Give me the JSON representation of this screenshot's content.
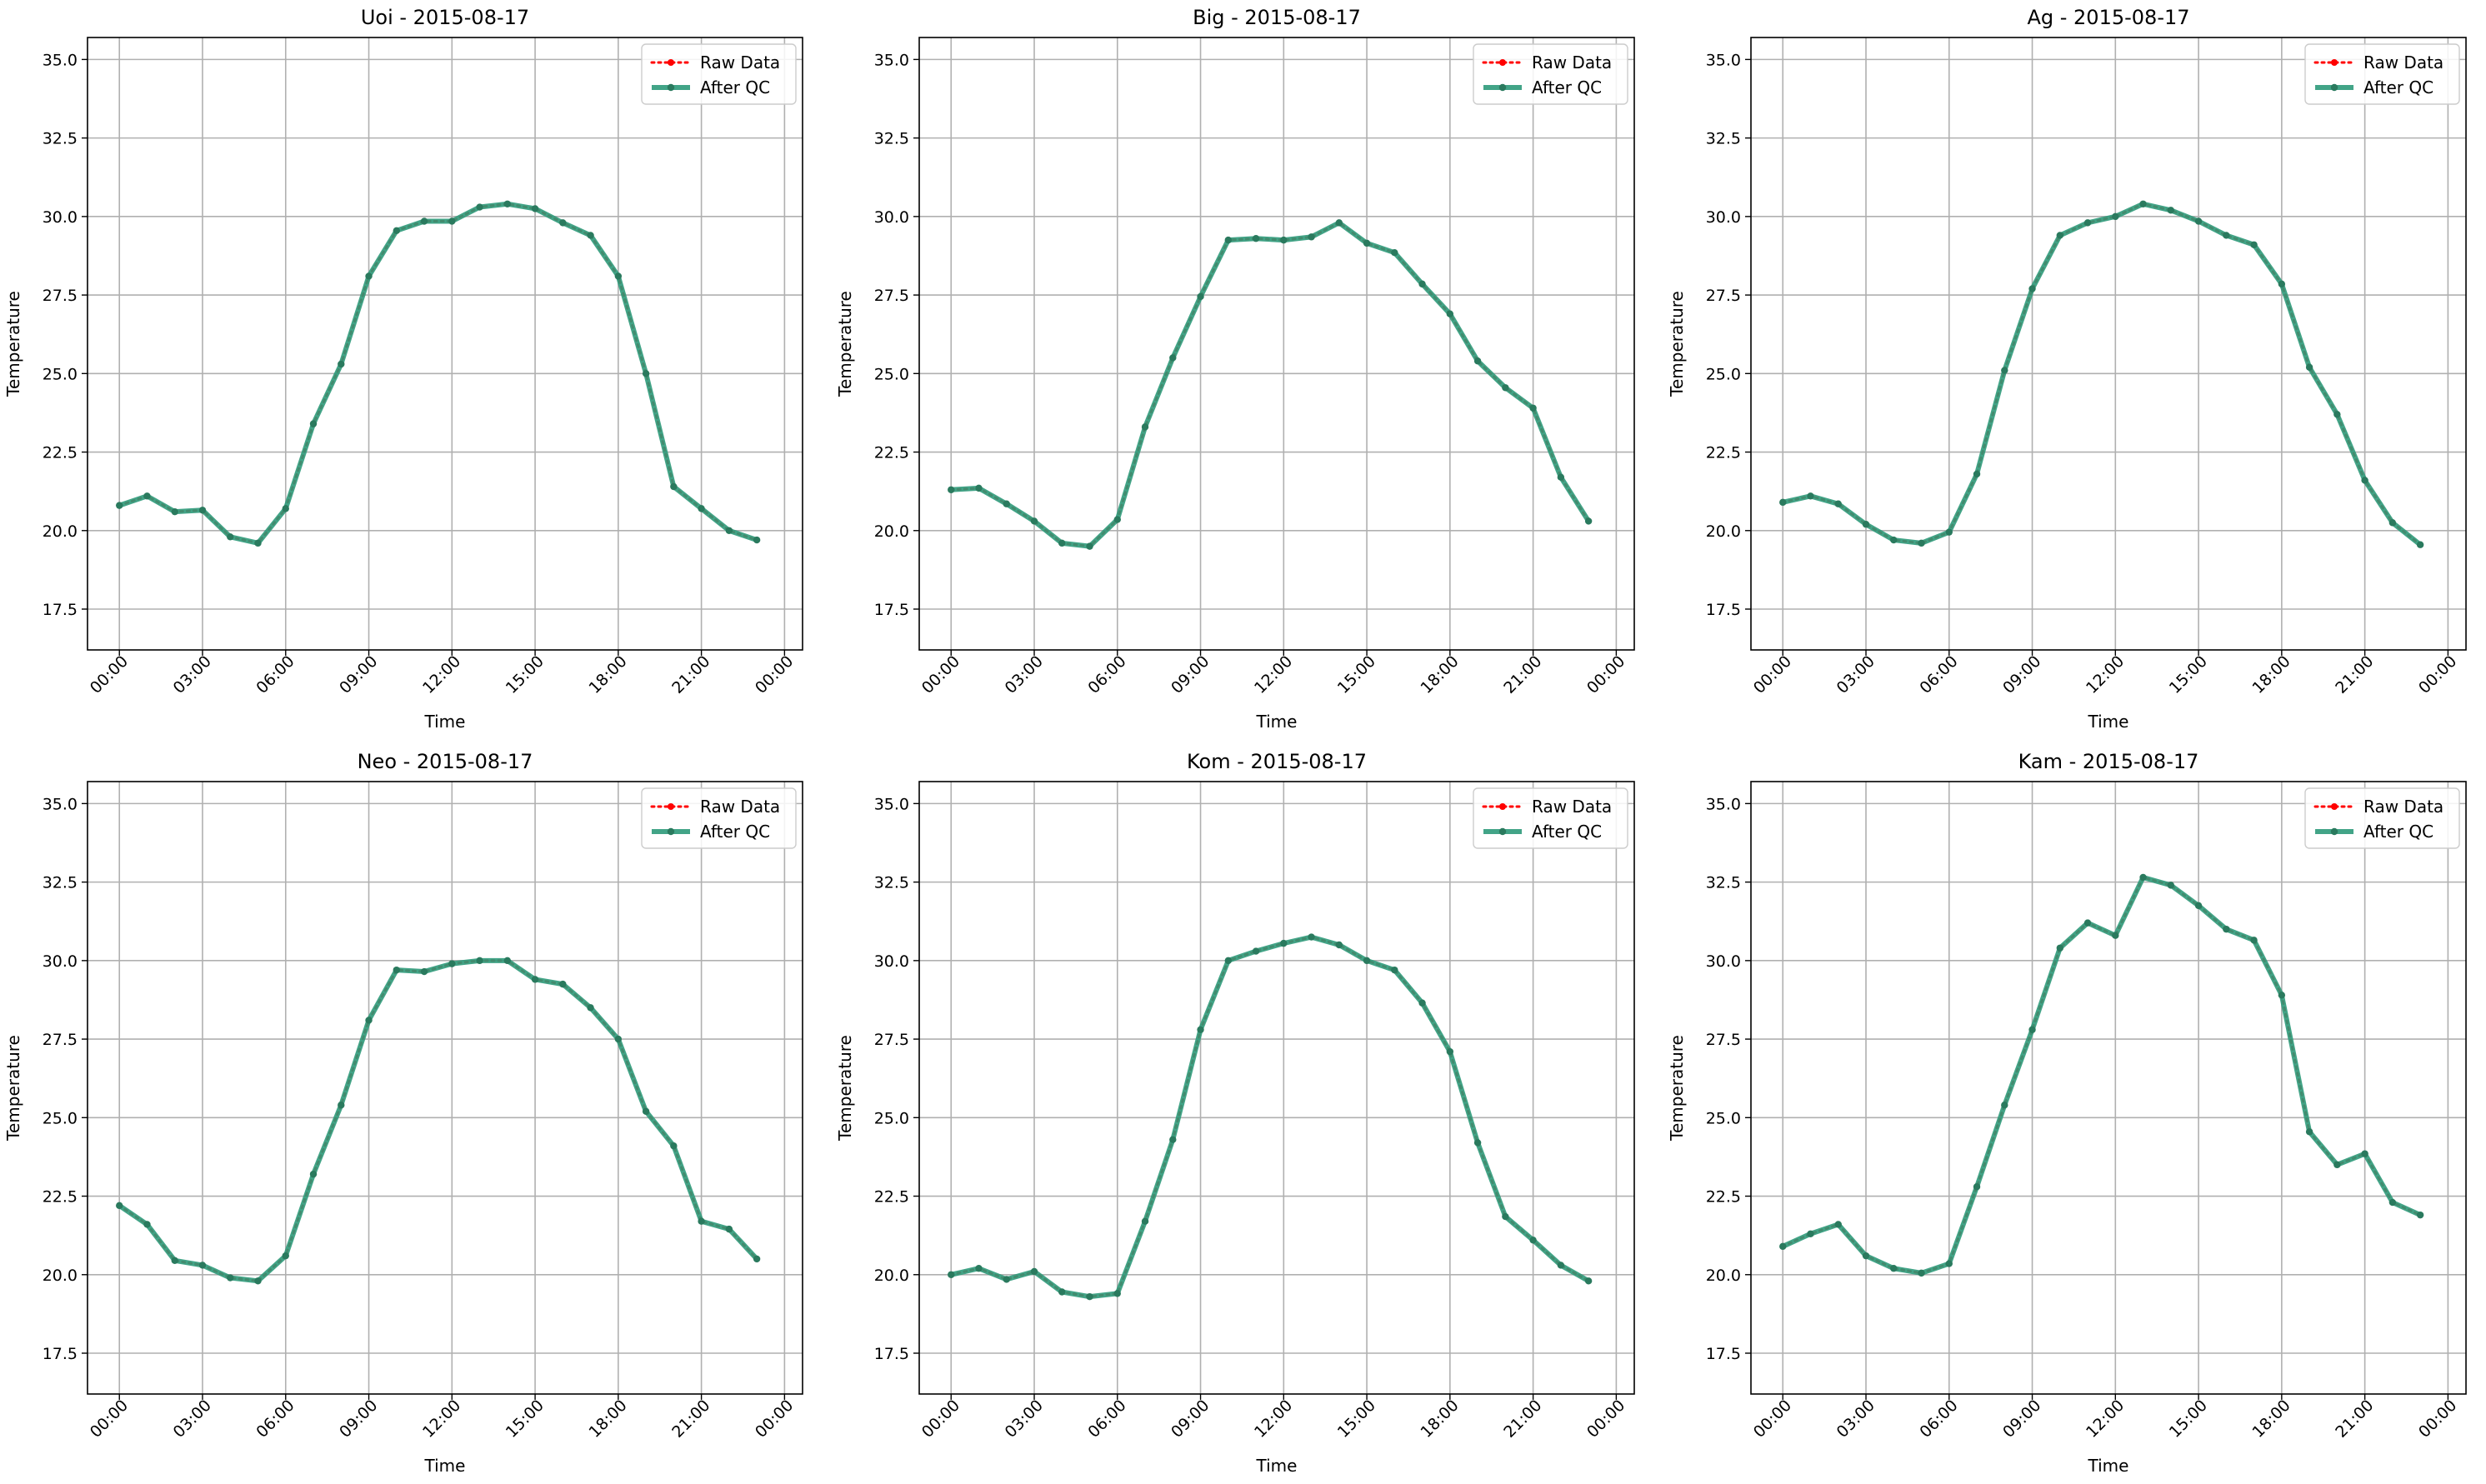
{
  "figure": {
    "background": "#ffffff"
  },
  "legend": {
    "raw_label": "Raw Data",
    "qc_label": "After QC",
    "placement": "upper-right"
  },
  "colors": {
    "raw": "#ff0000",
    "qc": "#2e9a7a",
    "qc_marker": "#2a7a5e",
    "grid": "#b0b0b0",
    "axis": "#000000"
  },
  "chart_data": [
    {
      "type": "line",
      "title": "Uoi - 2015-08-17",
      "xlabel": "Time",
      "ylabel": "Temperature",
      "ylim": [
        16.2,
        35.7
      ],
      "yticks": [
        "17.5",
        "20.0",
        "22.5",
        "25.0",
        "27.5",
        "30.0",
        "32.5",
        "35.0"
      ],
      "xticks": [
        "00:00",
        "03:00",
        "06:00",
        "09:00",
        "12:00",
        "15:00",
        "18:00",
        "21:00",
        "00:00"
      ],
      "grid": true,
      "x": [
        "00:00",
        "01:00",
        "02:00",
        "03:00",
        "04:00",
        "05:00",
        "06:00",
        "07:00",
        "08:00",
        "09:00",
        "10:00",
        "11:00",
        "12:00",
        "13:00",
        "14:00",
        "15:00",
        "16:00",
        "17:00",
        "18:00",
        "19:00",
        "20:00",
        "21:00",
        "22:00",
        "23:00"
      ],
      "series": [
        {
          "name": "Raw Data",
          "values": [
            20.8,
            21.1,
            20.6,
            20.65,
            19.8,
            19.6,
            20.7,
            23.4,
            25.3,
            28.1,
            29.55,
            29.85,
            29.85,
            30.3,
            30.4,
            30.25,
            29.8,
            29.4,
            28.1,
            25.0,
            21.4,
            20.7,
            20.0,
            19.7
          ]
        },
        {
          "name": "After QC",
          "values": [
            20.8,
            21.1,
            20.6,
            20.65,
            19.8,
            19.6,
            20.7,
            23.4,
            25.3,
            28.1,
            29.55,
            29.85,
            29.85,
            30.3,
            30.4,
            30.25,
            29.8,
            29.4,
            28.1,
            25.0,
            21.4,
            20.7,
            20.0,
            19.7
          ]
        }
      ]
    },
    {
      "type": "line",
      "title": "Big - 2015-08-17",
      "xlabel": "Time",
      "ylabel": "Temperature",
      "ylim": [
        16.2,
        35.7
      ],
      "yticks": [
        "17.5",
        "20.0",
        "22.5",
        "25.0",
        "27.5",
        "30.0",
        "32.5",
        "35.0"
      ],
      "xticks": [
        "00:00",
        "03:00",
        "06:00",
        "09:00",
        "12:00",
        "15:00",
        "18:00",
        "21:00",
        "00:00"
      ],
      "grid": true,
      "x": [
        "00:00",
        "01:00",
        "02:00",
        "03:00",
        "04:00",
        "05:00",
        "06:00",
        "07:00",
        "08:00",
        "09:00",
        "10:00",
        "11:00",
        "12:00",
        "13:00",
        "14:00",
        "15:00",
        "16:00",
        "17:00",
        "18:00",
        "19:00",
        "20:00",
        "21:00",
        "22:00",
        "23:00"
      ],
      "series": [
        {
          "name": "Raw Data",
          "values": [
            21.3,
            21.35,
            20.85,
            20.3,
            19.6,
            19.5,
            20.35,
            23.3,
            25.5,
            27.45,
            29.25,
            29.3,
            29.25,
            29.35,
            29.8,
            29.15,
            28.85,
            27.85,
            26.9,
            25.4,
            24.55,
            23.9,
            21.7,
            20.3
          ]
        },
        {
          "name": "After QC",
          "values": [
            21.3,
            21.35,
            20.85,
            20.3,
            19.6,
            19.5,
            20.35,
            23.3,
            25.5,
            27.45,
            29.25,
            29.3,
            29.25,
            29.35,
            29.8,
            29.15,
            28.85,
            27.85,
            26.9,
            25.4,
            24.55,
            23.9,
            21.7,
            20.3
          ]
        }
      ]
    },
    {
      "type": "line",
      "title": "Ag - 2015-08-17",
      "xlabel": "Time",
      "ylabel": "Temperature",
      "ylim": [
        16.2,
        35.7
      ],
      "yticks": [
        "17.5",
        "20.0",
        "22.5",
        "25.0",
        "27.5",
        "30.0",
        "32.5",
        "35.0"
      ],
      "xticks": [
        "00:00",
        "03:00",
        "06:00",
        "09:00",
        "12:00",
        "15:00",
        "18:00",
        "21:00",
        "00:00"
      ],
      "grid": true,
      "x": [
        "00:00",
        "01:00",
        "02:00",
        "03:00",
        "04:00",
        "05:00",
        "06:00",
        "07:00",
        "08:00",
        "09:00",
        "10:00",
        "11:00",
        "12:00",
        "13:00",
        "14:00",
        "15:00",
        "16:00",
        "17:00",
        "18:00",
        "19:00",
        "20:00",
        "21:00",
        "22:00",
        "23:00"
      ],
      "series": [
        {
          "name": "Raw Data",
          "values": [
            20.9,
            21.1,
            20.85,
            20.2,
            19.7,
            19.6,
            19.95,
            21.8,
            25.1,
            27.7,
            29.4,
            29.8,
            30.0,
            30.4,
            30.2,
            29.85,
            29.4,
            29.1,
            27.85,
            25.2,
            23.7,
            21.6,
            20.25,
            19.55
          ]
        },
        {
          "name": "After QC",
          "values": [
            20.9,
            21.1,
            20.85,
            20.2,
            19.7,
            19.6,
            19.95,
            21.8,
            25.1,
            27.7,
            29.4,
            29.8,
            30.0,
            30.4,
            30.2,
            29.85,
            29.4,
            29.1,
            27.85,
            25.2,
            23.7,
            21.6,
            20.25,
            19.55
          ]
        }
      ]
    },
    {
      "type": "line",
      "title": "Neo - 2015-08-17",
      "xlabel": "Time",
      "ylabel": "Temperature",
      "ylim": [
        16.2,
        35.7
      ],
      "yticks": [
        "17.5",
        "20.0",
        "22.5",
        "25.0",
        "27.5",
        "30.0",
        "32.5",
        "35.0"
      ],
      "xticks": [
        "00:00",
        "03:00",
        "06:00",
        "09:00",
        "12:00",
        "15:00",
        "18:00",
        "21:00",
        "00:00"
      ],
      "grid": true,
      "x": [
        "00:00",
        "01:00",
        "02:00",
        "03:00",
        "04:00",
        "05:00",
        "06:00",
        "07:00",
        "08:00",
        "09:00",
        "10:00",
        "11:00",
        "12:00",
        "13:00",
        "14:00",
        "15:00",
        "16:00",
        "17:00",
        "18:00",
        "19:00",
        "20:00",
        "21:00",
        "22:00",
        "23:00"
      ],
      "series": [
        {
          "name": "Raw Data",
          "values": [
            22.2,
            21.6,
            20.45,
            20.3,
            19.9,
            19.8,
            20.6,
            23.2,
            25.4,
            28.1,
            29.7,
            29.65,
            29.9,
            30.0,
            30.0,
            29.4,
            29.25,
            28.5,
            27.5,
            25.2,
            24.1,
            21.7,
            21.45,
            20.5
          ]
        },
        {
          "name": "After QC",
          "values": [
            22.2,
            21.6,
            20.45,
            20.3,
            19.9,
            19.8,
            20.6,
            23.2,
            25.4,
            28.1,
            29.7,
            29.65,
            29.9,
            30.0,
            30.0,
            29.4,
            29.25,
            28.5,
            27.5,
            25.2,
            24.1,
            21.7,
            21.45,
            20.5
          ]
        }
      ]
    },
    {
      "type": "line",
      "title": "Kom - 2015-08-17",
      "xlabel": "Time",
      "ylabel": "Temperature",
      "ylim": [
        16.2,
        35.7
      ],
      "yticks": [
        "17.5",
        "20.0",
        "22.5",
        "25.0",
        "27.5",
        "30.0",
        "32.5",
        "35.0"
      ],
      "xticks": [
        "00:00",
        "03:00",
        "06:00",
        "09:00",
        "12:00",
        "15:00",
        "18:00",
        "21:00",
        "00:00"
      ],
      "grid": true,
      "x": [
        "00:00",
        "01:00",
        "02:00",
        "03:00",
        "04:00",
        "05:00",
        "06:00",
        "07:00",
        "08:00",
        "09:00",
        "10:00",
        "11:00",
        "12:00",
        "13:00",
        "14:00",
        "15:00",
        "16:00",
        "17:00",
        "18:00",
        "19:00",
        "20:00",
        "21:00",
        "22:00",
        "23:00"
      ],
      "series": [
        {
          "name": "Raw Data",
          "values": [
            20.0,
            20.2,
            19.85,
            20.1,
            19.45,
            19.3,
            19.4,
            21.7,
            24.3,
            27.8,
            30.0,
            30.3,
            30.55,
            30.75,
            30.5,
            30.0,
            29.7,
            28.65,
            27.1,
            24.2,
            21.85,
            21.1,
            20.3,
            19.8
          ]
        },
        {
          "name": "After QC",
          "values": [
            20.0,
            20.2,
            19.85,
            20.1,
            19.45,
            19.3,
            19.4,
            21.7,
            24.3,
            27.8,
            30.0,
            30.3,
            30.55,
            30.75,
            30.5,
            30.0,
            29.7,
            28.65,
            27.1,
            24.2,
            21.85,
            21.1,
            20.3,
            19.8
          ]
        }
      ]
    },
    {
      "type": "line",
      "title": "Kam - 2015-08-17",
      "xlabel": "Time",
      "ylabel": "Temperature",
      "ylim": [
        16.2,
        35.7
      ],
      "yticks": [
        "17.5",
        "20.0",
        "22.5",
        "25.0",
        "27.5",
        "30.0",
        "32.5",
        "35.0"
      ],
      "xticks": [
        "00:00",
        "03:00",
        "06:00",
        "09:00",
        "12:00",
        "15:00",
        "18:00",
        "21:00",
        "00:00"
      ],
      "grid": true,
      "x": [
        "00:00",
        "01:00",
        "02:00",
        "03:00",
        "04:00",
        "05:00",
        "06:00",
        "07:00",
        "08:00",
        "09:00",
        "10:00",
        "11:00",
        "12:00",
        "13:00",
        "14:00",
        "15:00",
        "16:00",
        "17:00",
        "18:00",
        "19:00",
        "20:00",
        "21:00",
        "22:00",
        "23:00"
      ],
      "series": [
        {
          "name": "Raw Data",
          "values": [
            20.9,
            21.3,
            21.6,
            20.6,
            20.2,
            20.05,
            20.35,
            22.8,
            25.4,
            27.8,
            30.4,
            31.2,
            30.8,
            32.65,
            32.4,
            31.75,
            31.0,
            30.65,
            28.9,
            24.55,
            23.5,
            23.85,
            22.3,
            21.9
          ]
        },
        {
          "name": "After QC",
          "values": [
            20.9,
            21.3,
            21.6,
            20.6,
            20.2,
            20.05,
            20.35,
            22.8,
            25.4,
            27.8,
            30.4,
            31.2,
            30.8,
            32.65,
            32.4,
            31.75,
            31.0,
            30.65,
            28.9,
            24.55,
            23.5,
            23.85,
            22.3,
            21.9
          ]
        }
      ]
    }
  ]
}
